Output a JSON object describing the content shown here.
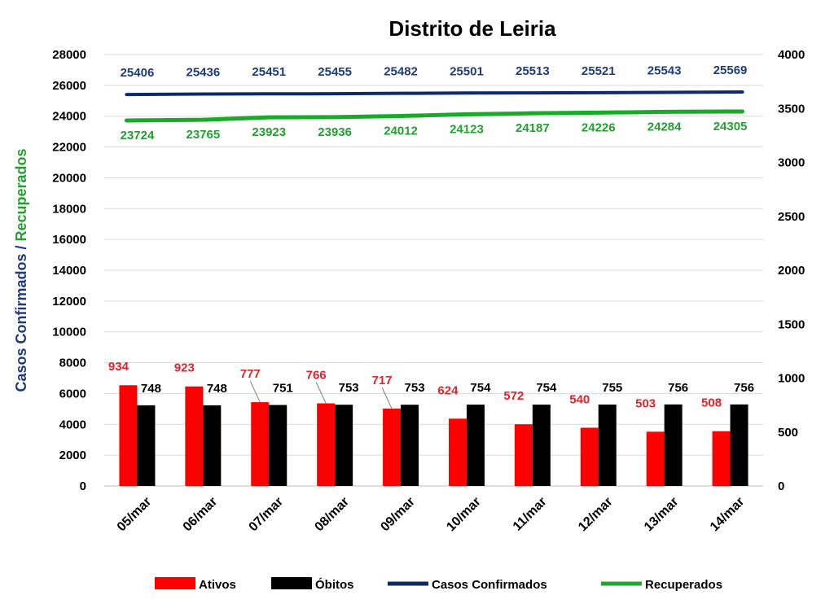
{
  "chart_data": {
    "type": "bar",
    "title": "Distrito de Leiria",
    "ylabel_left_part1": "Casos Confirmados",
    "ylabel_left_sep": " / ",
    "ylabel_left_part2": "Recuperados",
    "categories": [
      "05/mar",
      "06/mar",
      "07/mar",
      "08/mar",
      "09/mar",
      "10/mar",
      "11/mar",
      "12/mar",
      "13/mar",
      "14/mar"
    ],
    "y_left": {
      "min": 0,
      "max": 28000,
      "step": 2000
    },
    "y_right": {
      "min": 0,
      "max": 4000,
      "step": 500
    },
    "grid": true,
    "legend_position": "bottom",
    "series": [
      {
        "name": "Ativos",
        "type": "bar",
        "axis": "right",
        "color": "#ff0000",
        "label_color": "#e8202a",
        "values": [
          934,
          923,
          777,
          766,
          717,
          624,
          572,
          540,
          503,
          508
        ]
      },
      {
        "name": "Óbitos",
        "type": "bar",
        "axis": "right",
        "color": "#000000",
        "label_color": "#000000",
        "values": [
          748,
          748,
          751,
          753,
          753,
          754,
          754,
          755,
          756,
          756
        ]
      },
      {
        "name": "Casos Confirmados",
        "type": "line",
        "axis": "left",
        "color": "#0d2a6b",
        "label_color": "#1f3a7a",
        "values": [
          25406,
          25436,
          25451,
          25455,
          25482,
          25501,
          25513,
          25521,
          25543,
          25569
        ]
      },
      {
        "name": "Recuperados",
        "type": "line",
        "axis": "left",
        "color": "#1aaa2a",
        "label_color": "#22a030",
        "values": [
          23724,
          23765,
          23923,
          23936,
          24012,
          24123,
          24187,
          24226,
          24284,
          24305
        ]
      }
    ]
  }
}
